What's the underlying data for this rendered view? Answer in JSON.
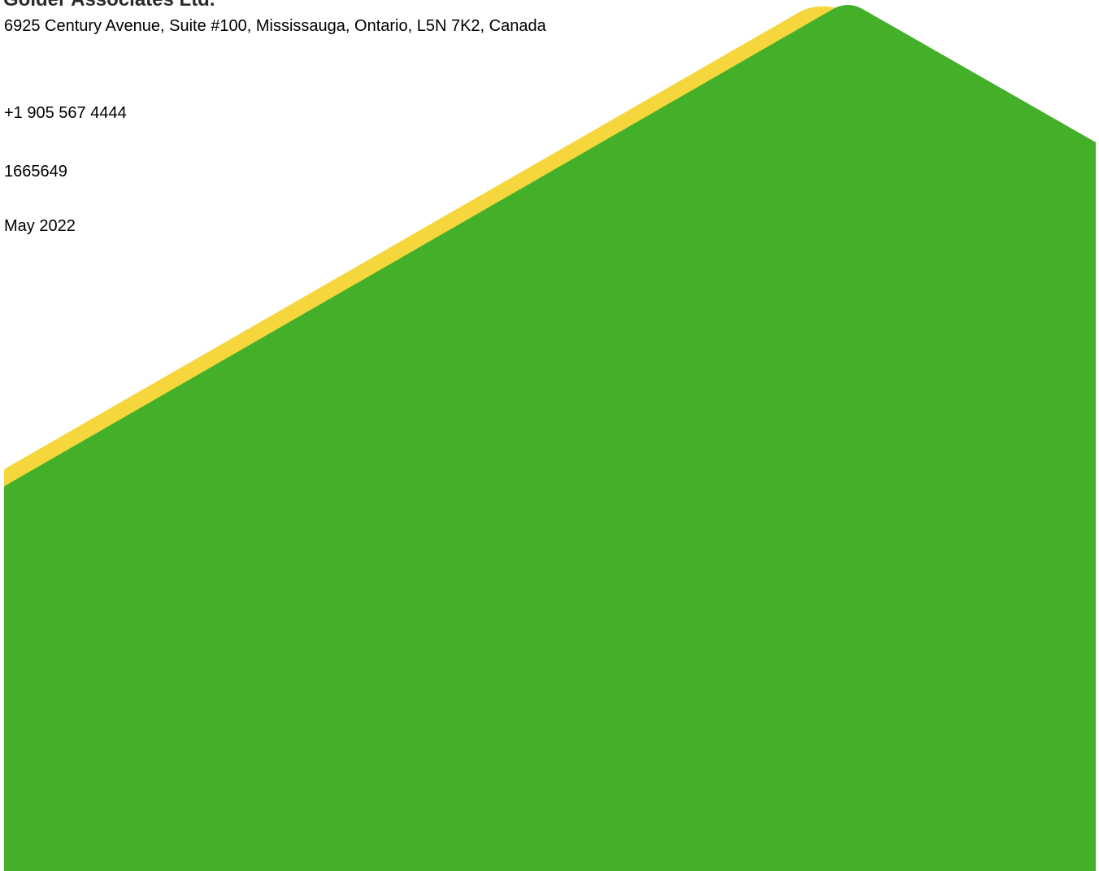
{
  "document": {
    "company_name": "Golder Associates Ltd.",
    "address": "6925 Century Avenue, Suite #100, Mississauga, Ontario, L5N 7K2, Canada",
    "phone": "+1 905 567 4444",
    "project_number": "1665649",
    "date": "May 2022"
  },
  "colors": {
    "background": "#ffffff",
    "accent_yellow": "#f5d63d",
    "brand_green": "#44b02a",
    "text": "#000000"
  }
}
